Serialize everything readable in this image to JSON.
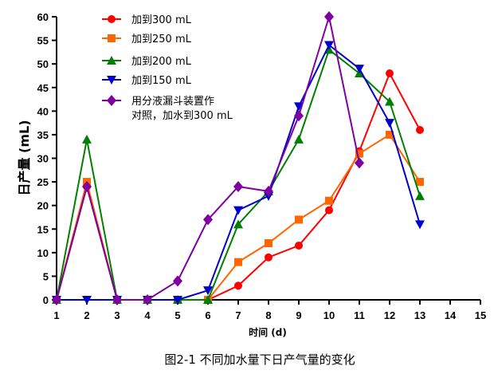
{
  "chart_data": {
    "type": "line",
    "title": "",
    "caption": "图2-1 不同加水量下日产气量的变化",
    "xlabel": "时间 (d)",
    "ylabel": "日产量 (mL)",
    "xlim": [
      1,
      15
    ],
    "ylim": [
      0,
      60
    ],
    "xticks": [
      1,
      2,
      3,
      4,
      5,
      6,
      7,
      8,
      9,
      10,
      11,
      12,
      13,
      14,
      15
    ],
    "yticks": [
      0,
      5,
      10,
      15,
      20,
      25,
      30,
      35,
      40,
      45,
      50,
      55,
      60
    ],
    "grid": false,
    "legend_position": "top-left",
    "series": [
      {
        "name": "加到300 mL",
        "color": "#ff0000",
        "marker": "circle",
        "x": [
          1,
          2,
          3,
          4,
          5,
          6,
          7,
          8,
          9,
          10,
          11,
          12,
          13
        ],
        "y": [
          0,
          24,
          0,
          0,
          0,
          0,
          3,
          9,
          11.5,
          19,
          31.5,
          48,
          36
        ]
      },
      {
        "name": "加到250 mL",
        "color": "#ff6600",
        "marker": "square",
        "x": [
          1,
          2,
          3,
          4,
          5,
          6,
          7,
          8,
          9,
          10,
          11,
          12,
          13
        ],
        "y": [
          0,
          25,
          0,
          0,
          0,
          0,
          8,
          12,
          17,
          21,
          31,
          35,
          25
        ]
      },
      {
        "name": "加到200 mL",
        "color": "#008000",
        "marker": "triangle-up",
        "x": [
          1,
          2,
          3,
          4,
          5,
          6,
          7,
          8,
          9,
          10,
          11,
          12,
          13
        ],
        "y": [
          0,
          34,
          0,
          0,
          0,
          0,
          16,
          23,
          34,
          53,
          48,
          42,
          22
        ]
      },
      {
        "name": "加到150 mL",
        "color": "#0000cc",
        "marker": "triangle-down",
        "x": [
          1,
          2,
          3,
          4,
          5,
          6,
          7,
          8,
          9,
          10,
          11,
          12,
          13
        ],
        "y": [
          0,
          0,
          0,
          0,
          0,
          2,
          19,
          22,
          41,
          54,
          49,
          37.5,
          16
        ]
      },
      {
        "name": "用分液漏斗装置作",
        "name_line2": "对照，加水到300 mL",
        "color": "#7f00a0",
        "marker": "diamond",
        "x": [
          1,
          2,
          3,
          4,
          5,
          6,
          7,
          8,
          9,
          10,
          11
        ],
        "y": [
          0,
          24,
          0,
          0,
          4,
          17,
          24,
          23,
          39,
          60,
          29
        ]
      }
    ]
  }
}
